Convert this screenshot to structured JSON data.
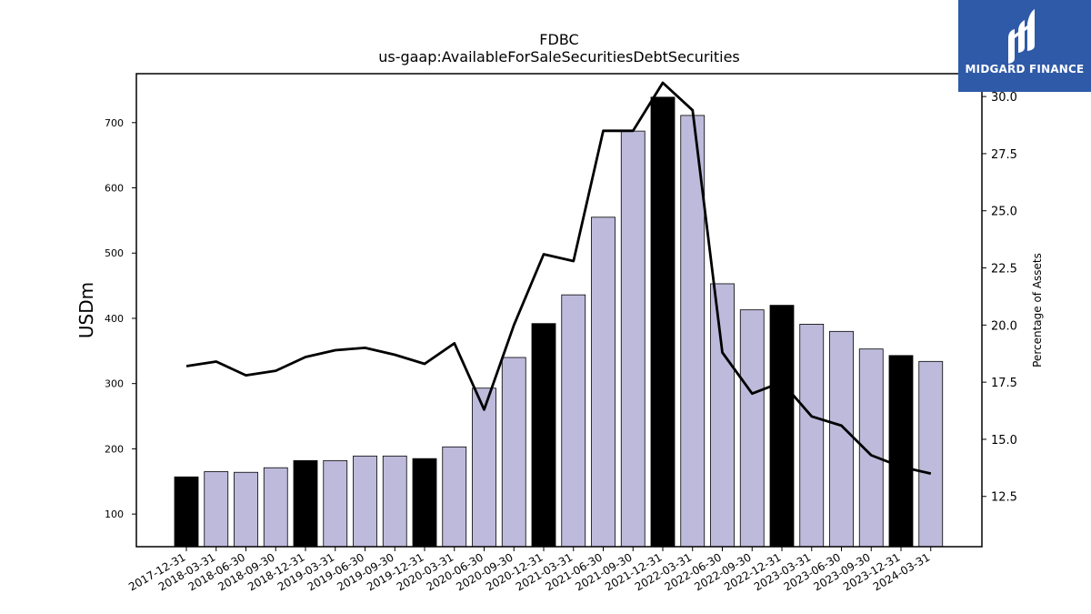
{
  "chart_data": {
    "type": "bar",
    "title": "FDBC",
    "subtitle": "us-gaap:AvailableForSaleSecuritiesDebtSecurities",
    "ylabel": "USDm",
    "y2label": "Percentage of Assets",
    "ylim": [
      50,
      775
    ],
    "y2lim": [
      10.3,
      31.0
    ],
    "yticks": [
      100,
      200,
      300,
      400,
      500,
      600,
      700
    ],
    "y2ticks": [
      12.5,
      15.0,
      17.5,
      20.0,
      22.5,
      25.0,
      27.5,
      30.0
    ],
    "categories": [
      "2017-12-31",
      "2018-03-31",
      "2018-06-30",
      "2018-09-30",
      "2018-12-31",
      "2019-03-31",
      "2019-06-30",
      "2019-09-30",
      "2019-12-31",
      "2020-03-31",
      "2020-06-30",
      "2020-09-30",
      "2020-12-31",
      "2021-03-31",
      "2021-06-30",
      "2021-09-30",
      "2021-12-31",
      "2022-03-31",
      "2022-06-30",
      "2022-09-30",
      "2022-12-31",
      "2023-03-31",
      "2023-06-30",
      "2023-09-30",
      "2023-12-31",
      "2024-03-31"
    ],
    "series": [
      {
        "values": [
          157,
          165,
          164,
          171,
          182,
          182,
          189,
          189,
          185,
          203,
          293,
          340,
          392,
          436,
          555,
          687,
          739,
          711,
          453,
          413,
          420,
          391,
          380,
          353,
          343,
          334
        ],
        "highlight": [
          true,
          false,
          false,
          false,
          true,
          false,
          false,
          false,
          true,
          false,
          false,
          false,
          true,
          false,
          false,
          false,
          true,
          false,
          false,
          false,
          true,
          false,
          false,
          false,
          true,
          false
        ],
        "axis": "left"
      },
      {
        "type": "line",
        "values": [
          18.2,
          18.4,
          17.8,
          18.0,
          18.6,
          18.9,
          19.0,
          18.7,
          18.3,
          19.2,
          16.3,
          20.0,
          23.1,
          22.8,
          28.5,
          28.5,
          30.6,
          29.4,
          18.8,
          17.0,
          17.5,
          16.0,
          15.6,
          14.3,
          13.8,
          13.5
        ],
        "axis": "right"
      }
    ],
    "colors": {
      "bar": "#bdbadb",
      "bar_highlight": "#000000",
      "line": "#000000"
    }
  },
  "logo": {
    "text": "MIDGARD FINANCE",
    "background": "#2f5aa8"
  }
}
